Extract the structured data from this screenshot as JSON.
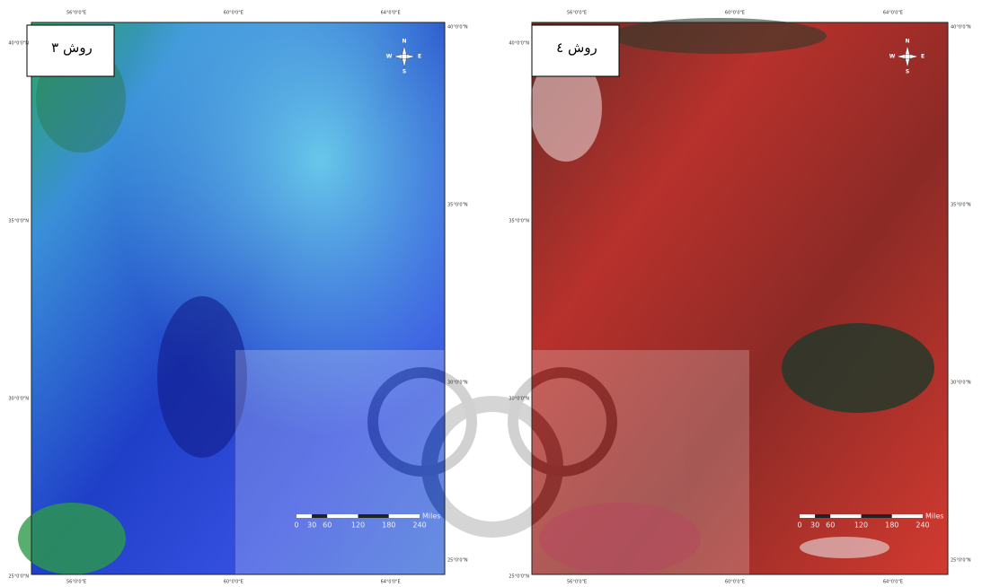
{
  "panels": [
    {
      "title": "روش ۳",
      "lon_labels": [
        "56°0'0\"E",
        "60°0'0\"E",
        "64°0'0\"E"
      ],
      "lat_labels": [
        "40°0'0\"N",
        "35°0'0\"N",
        "30°0'0\"N",
        "25°0'0\"N"
      ],
      "compass": {
        "n": "N",
        "e": "E",
        "s": "S",
        "w": "W"
      },
      "scale": {
        "ticks": [
          "0",
          "30",
          "60",
          "120",
          "180",
          "240"
        ],
        "unit": "Miles"
      }
    },
    {
      "title": "روش ٤",
      "lon_labels": [
        "56°0'0\"E",
        "60°0'0\"E",
        "64°0'0\"E"
      ],
      "lat_labels": [
        "40°0'0\"N",
        "35°0'0\"N",
        "30°0'0\"N",
        "25°0'0\"N"
      ],
      "compass": {
        "n": "N",
        "e": "E",
        "s": "S",
        "w": "W"
      },
      "scale": {
        "ticks": [
          "0",
          "30",
          "60",
          "120",
          "180",
          "240"
        ],
        "unit": "Miles"
      }
    }
  ]
}
